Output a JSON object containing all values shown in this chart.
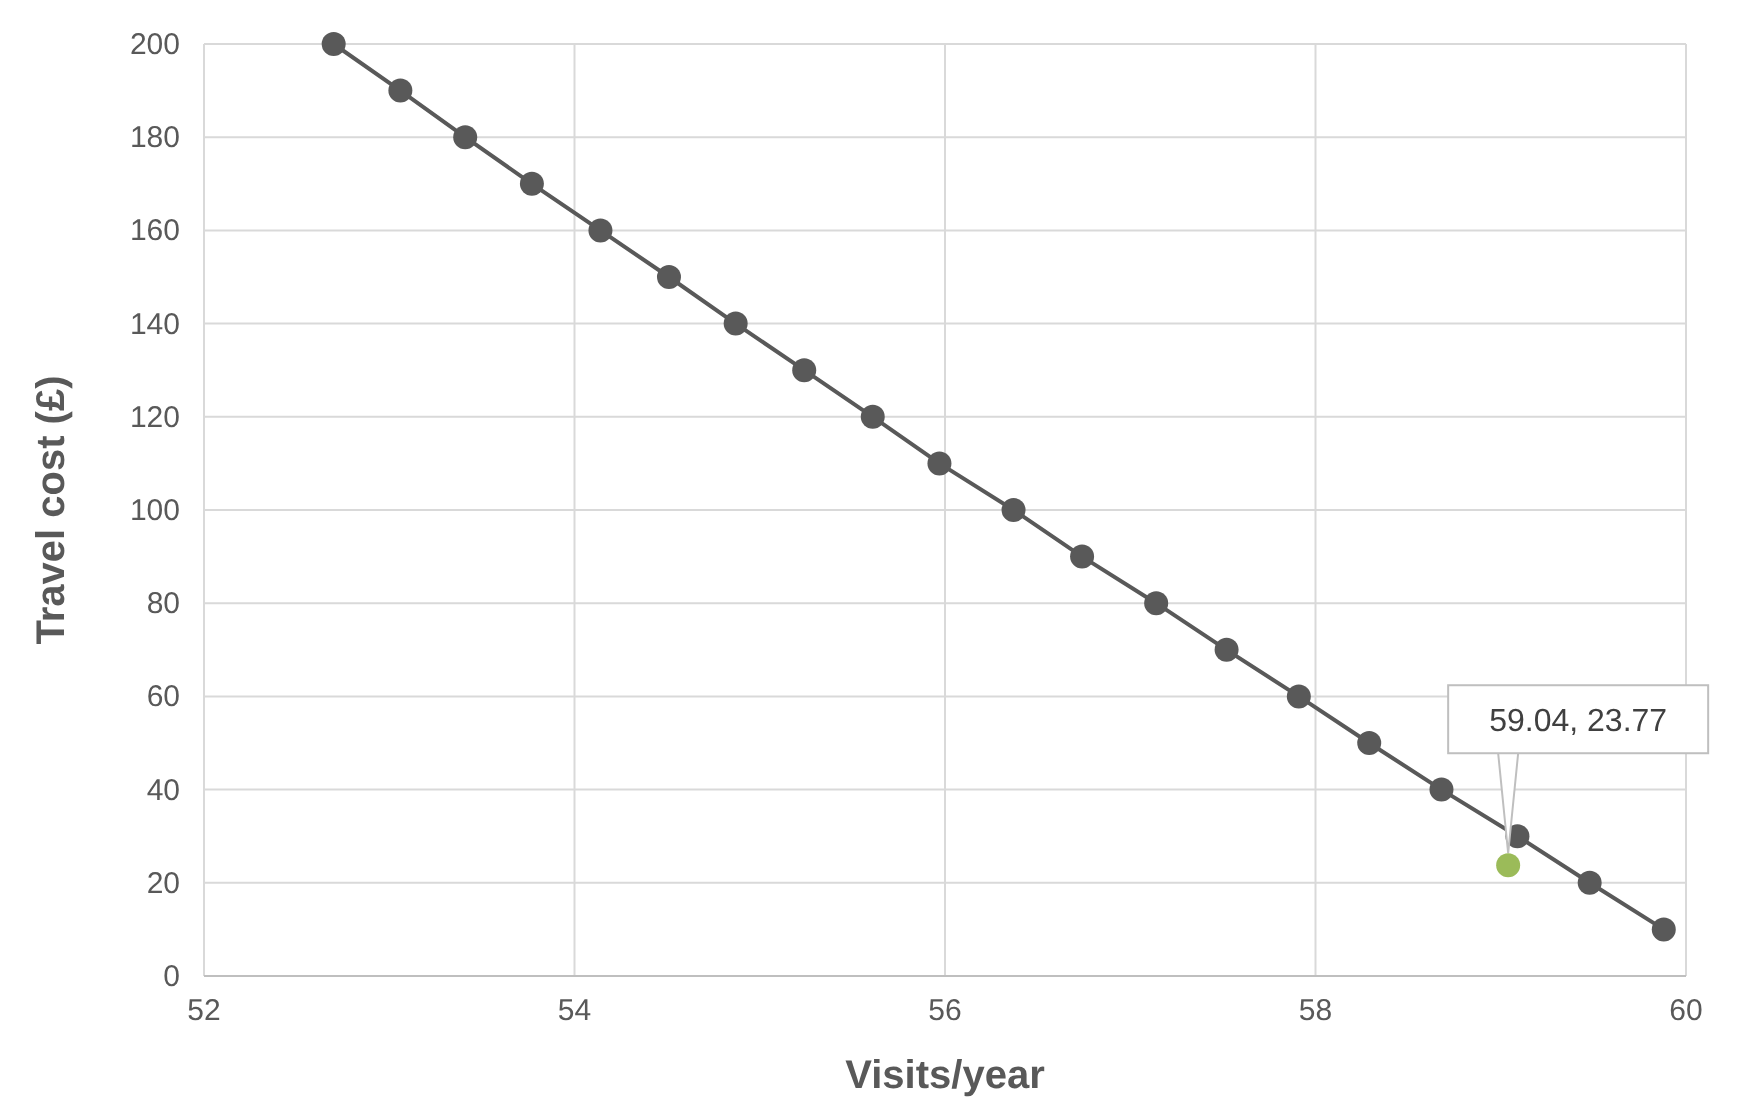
{
  "chart_data": {
    "type": "line",
    "xlabel": "Visits/year",
    "ylabel": "Travel cost (£)",
    "x": [
      52.7,
      53.06,
      53.41,
      53.77,
      54.14,
      54.51,
      54.87,
      55.24,
      55.61,
      55.97,
      56.37,
      56.74,
      57.14,
      57.52,
      57.91,
      58.29,
      58.68,
      59.09,
      59.48,
      59.88
    ],
    "series": [
      {
        "color": "#595959",
        "values": [
          200,
          190,
          180,
          170,
          160,
          150,
          140,
          130,
          120,
          110,
          100,
          90,
          80,
          70,
          60,
          50,
          40,
          30,
          20,
          10
        ]
      }
    ],
    "annotations": [
      {
        "text": "59.04, 23.77",
        "x": 59.04,
        "y": 23.77
      }
    ],
    "xlim": [
      52,
      60
    ],
    "xticks": [
      52,
      54,
      56,
      58,
      60
    ],
    "ylim": [
      0,
      200
    ],
    "yticks": [
      0,
      20,
      40,
      60,
      80,
      100,
      120,
      140,
      160,
      180,
      200
    ],
    "grid": true,
    "marker": "circle",
    "line_style": "solid"
  }
}
